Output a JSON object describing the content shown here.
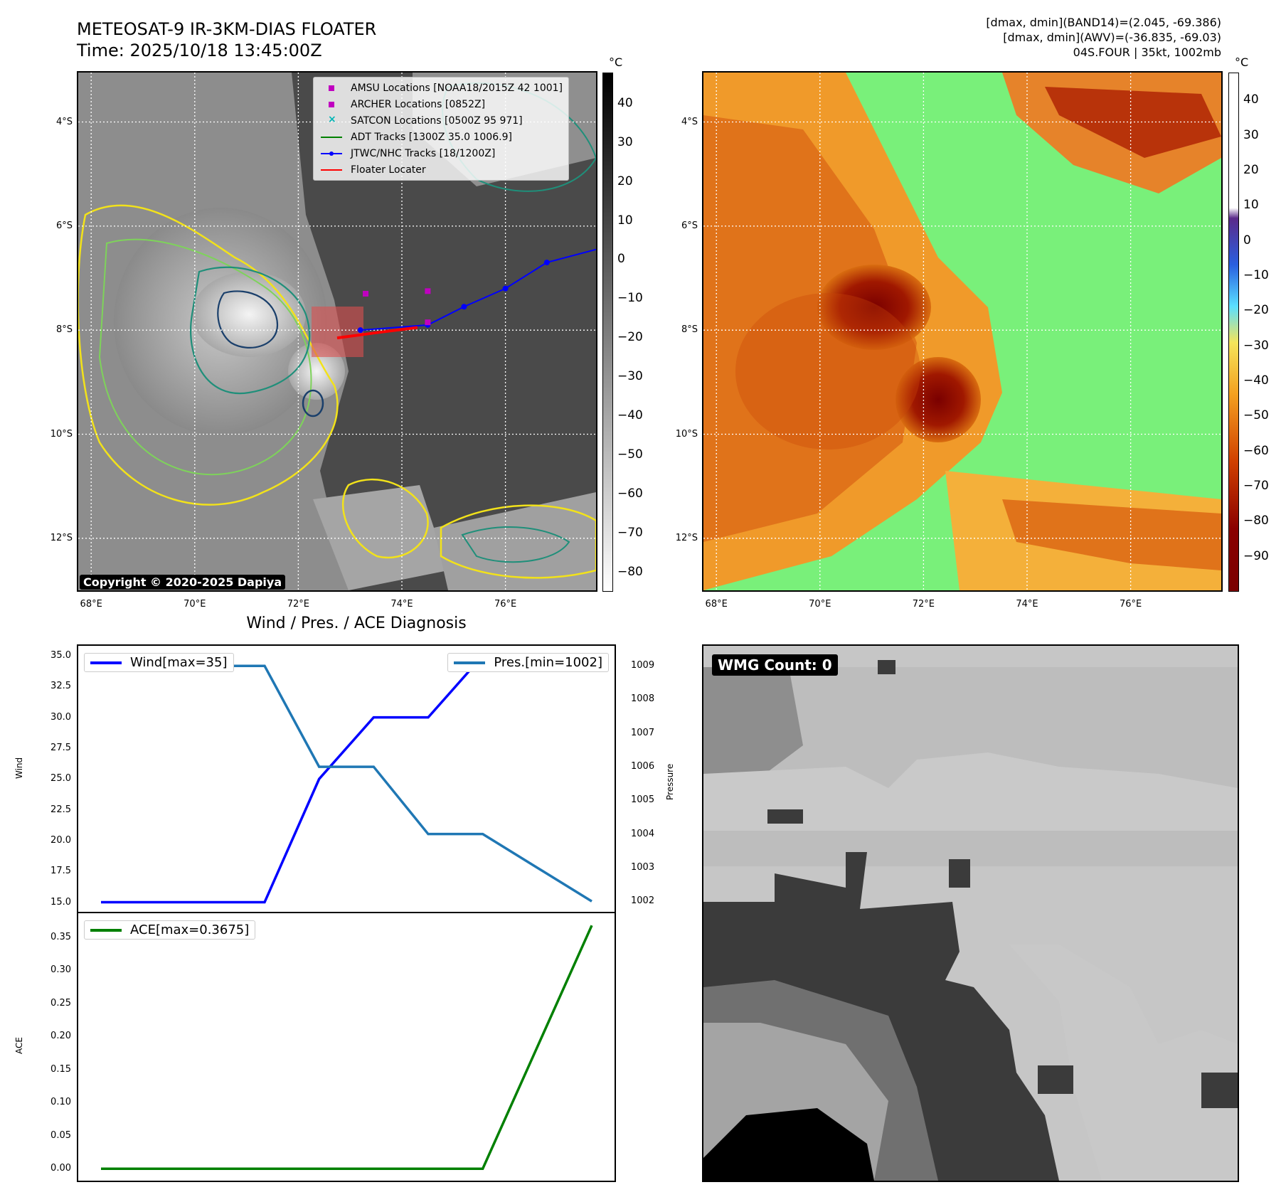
{
  "header": {
    "title_line1": "METEOSAT-9 IR-3KM-DIAS FLOATER",
    "title_line2": "Time: 2025/10/18 13:45:00Z",
    "dmax_band14": "[dmax, dmin](BAND14)=(2.045, -69.386)",
    "dmax_awv": "[dmax, dmin](AWV)=(-36.835, -69.03)",
    "storm_info": "04S.FOUR | 35kt, 1002mb"
  },
  "map": {
    "lat_ticks": [
      "4°S",
      "6°S",
      "8°S",
      "10°S",
      "12°S"
    ],
    "lon_ticks": [
      "68°E",
      "70°E",
      "72°E",
      "74°E",
      "76°E"
    ],
    "lat_values": [
      -4,
      -6,
      -8,
      -10,
      -12
    ],
    "lon_values": [
      68,
      70,
      72,
      74,
      76
    ],
    "lat_range": [
      -3.05,
      -13.0
    ],
    "lon_range": [
      67.75,
      77.75
    ],
    "copyright": "Copyright © 2020-2025 Dapiya",
    "ir_colorbar_unit": "°C",
    "ir_colorbar_ticks": [
      "40",
      "30",
      "20",
      "10",
      "0",
      "−10",
      "−20",
      "−30",
      "−40",
      "−50",
      "−60",
      "−70",
      "−80"
    ],
    "ir_colorbar_range": [
      48,
      -85
    ],
    "awv_colorbar_unit": "°C",
    "awv_colorbar_ticks": [
      "40",
      "30",
      "20",
      "10",
      "0",
      "−10",
      "−20",
      "−30",
      "−40",
      "−50",
      "−60",
      "−70",
      "−80",
      "−90"
    ],
    "awv_colorbar_range": [
      48,
      -100
    ]
  },
  "legend": {
    "items": [
      {
        "label": "AMSU Locations [NOAA18/2015Z 42 1001]",
        "color": "#c000c0",
        "kind": "square"
      },
      {
        "label": "ARCHER Locations [0852Z]",
        "color": "#c000c0",
        "kind": "square"
      },
      {
        "label": "SATCON Locations [0500Z 95 971]",
        "color": "#00b5b5",
        "kind": "x"
      },
      {
        "label": "ADT Tracks [1300Z 35.0 1006.9]",
        "color": "#008000",
        "kind": "line"
      },
      {
        "label": "JTWC/NHC Tracks [18/1200Z]",
        "color": "#0000ff",
        "kind": "line-dot"
      },
      {
        "label": "Floater Locater",
        "color": "#ff0000",
        "kind": "line"
      }
    ]
  },
  "tracks": {
    "jtwc": [
      [
        73.2,
        -8.0
      ],
      [
        74.5,
        -7.9
      ],
      [
        75.2,
        -7.55
      ],
      [
        76.0,
        -7.2
      ],
      [
        76.8,
        -6.7
      ],
      [
        77.75,
        -6.45
      ]
    ],
    "amsu": [
      [
        73.3,
        -7.3
      ],
      [
        74.5,
        -7.25
      ],
      [
        74.5,
        -7.85
      ]
    ],
    "floater": [
      [
        72.75,
        -8.15
      ],
      [
        73.5,
        -8.05
      ],
      [
        74.3,
        -7.95
      ]
    ]
  },
  "diagnosis": {
    "title": "Wind / Pres. / ACE Diagnosis",
    "wind_legend": "Wind[max=35]",
    "pres_legend": "Pres.[min=1002]",
    "ace_legend": "ACE[max=0.3675]",
    "wind_ylabel": "Wind",
    "pres_ylabel": "Pressure",
    "ace_ylabel": "ACE",
    "wind_ticks": [
      "35.0",
      "32.5",
      "30.0",
      "27.5",
      "25.0",
      "22.5",
      "20.0",
      "17.5",
      "15.0"
    ],
    "pres_ticks": [
      "1009",
      "1008",
      "1007",
      "1006",
      "1005",
      "1004",
      "1003",
      "1002"
    ],
    "ace_ticks": [
      "0.35",
      "0.30",
      "0.25",
      "0.20",
      "0.15",
      "0.10",
      "0.05",
      "0.00"
    ],
    "wmg_label": "WMG Count: 0"
  },
  "chart_data": {
    "type": "line",
    "x": [
      0,
      1,
      2,
      3,
      4,
      5,
      6,
      7,
      8,
      9
    ],
    "series": [
      {
        "name": "Wind[max=35]",
        "axis": "wind",
        "values": [
          15,
          15,
          15,
          15,
          25,
          30,
          30,
          35,
          35,
          35
        ],
        "color": "#0000ff"
      },
      {
        "name": "Pres.[min=1002]",
        "axis": "pressure",
        "values": [
          1009,
          1009,
          1009,
          1009,
          1006,
          1006,
          1004,
          1004,
          1003,
          1002
        ],
        "color": "#1f77b4"
      },
      {
        "name": "ACE[max=0.3675]",
        "axis": "ace",
        "values": [
          0,
          0,
          0,
          0,
          0,
          0,
          0,
          0,
          0.1838,
          0.3675
        ],
        "color": "#008000"
      }
    ],
    "wind_ylim": [
      14.8,
      35.0
    ],
    "pres_ylim": [
      1001.9,
      1009.3
    ],
    "ace_ylim": [
      -0.018,
      0.386
    ]
  }
}
